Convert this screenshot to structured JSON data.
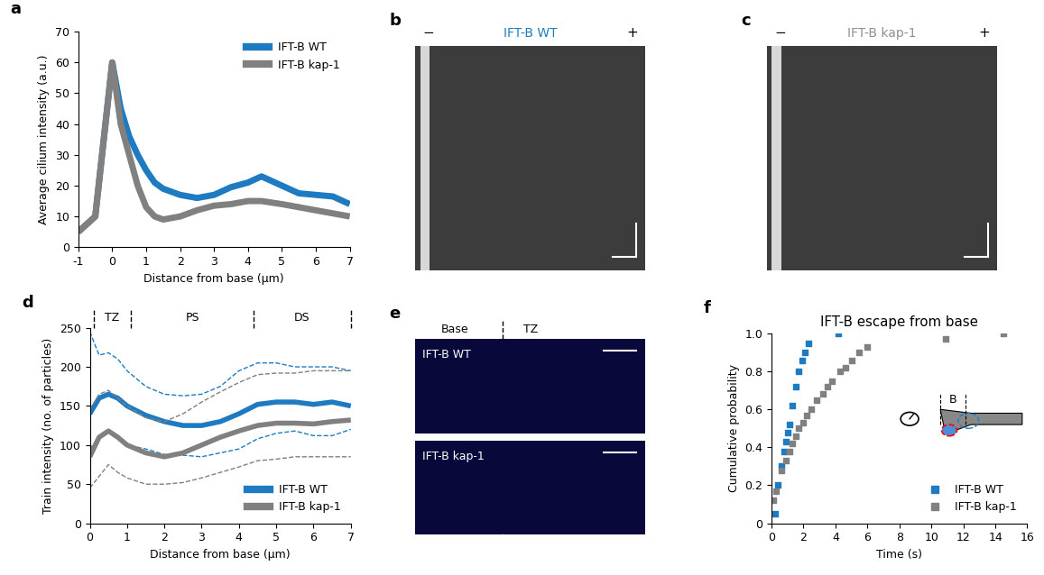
{
  "chart_data": [
    {
      "panel": "a",
      "type": "line",
      "xlabel": "Distance from base (μm)",
      "ylabel": "Average cilium intensity (a.u.)",
      "x": [
        -1,
        -0.5,
        0,
        0.25,
        0.5,
        0.75,
        1,
        1.25,
        1.5,
        2,
        2.5,
        3,
        3.5,
        4,
        4.4,
        5,
        5.5,
        6,
        6.5,
        7
      ],
      "series": [
        {
          "name": "IFT-B WT",
          "color": "#1f7bc1",
          "values": [
            5,
            10,
            60,
            45,
            36,
            30,
            25,
            21,
            19,
            17,
            16,
            17,
            19.5,
            21,
            23,
            20,
            17.5,
            17,
            16.5,
            14
          ]
        },
        {
          "name": "IFT-B kap-1",
          "color": "#808080",
          "values": [
            5,
            10,
            60,
            40,
            30,
            20,
            13,
            10,
            9,
            10,
            12,
            13.5,
            14,
            15,
            15,
            14,
            13,
            12,
            11,
            10
          ]
        }
      ],
      "xlim": [
        -1,
        7
      ],
      "xticks": [
        -1,
        0,
        1,
        2,
        3,
        4,
        5,
        6,
        7
      ],
      "ylim": [
        0,
        70
      ],
      "yticks": [
        0,
        10,
        20,
        30,
        40,
        50,
        60,
        70
      ],
      "legend": "upper right"
    },
    {
      "panel": "b",
      "type": "image",
      "title": "IFT-B WT",
      "color": "#1f7bc1",
      "minus_label": "−",
      "plus_label": "+"
    },
    {
      "panel": "c",
      "type": "image",
      "title": "IFT-B kap-1",
      "color": "#909090",
      "minus_label": "−",
      "plus_label": "+"
    },
    {
      "panel": "d",
      "type": "line",
      "xlabel": "Distance from base (μm)",
      "ylabel": "Train intensity (no. of particles)",
      "x": [
        0,
        0.25,
        0.5,
        0.75,
        1,
        1.5,
        2,
        2.5,
        3,
        3.5,
        4,
        4.5,
        5,
        5.5,
        6,
        6.5,
        7
      ],
      "series": [
        {
          "name": "IFT-B WT",
          "color": "#1f7bc1",
          "values": [
            140,
            160,
            165,
            160,
            150,
            138,
            130,
            125,
            125,
            130,
            140,
            152,
            155,
            155,
            152,
            155,
            150
          ],
          "upper": [
            245,
            215,
            218,
            210,
            195,
            175,
            165,
            163,
            165,
            175,
            195,
            205,
            205,
            200,
            200,
            200,
            195
          ],
          "lower": [
            95,
            110,
            118,
            110,
            100,
            95,
            88,
            87,
            85,
            90,
            95,
            108,
            115,
            118,
            112,
            112,
            120
          ]
        },
        {
          "name": "IFT-B kap-1",
          "color": "#808080",
          "values": [
            85,
            110,
            118,
            110,
            100,
            90,
            85,
            90,
            100,
            110,
            118,
            125,
            128,
            128,
            127,
            130,
            132
          ],
          "upper": [
            145,
            165,
            170,
            160,
            150,
            135,
            130,
            140,
            155,
            168,
            180,
            190,
            192,
            192,
            195,
            195,
            195
          ],
          "lower": [
            45,
            60,
            75,
            65,
            58,
            50,
            50,
            52,
            58,
            65,
            72,
            80,
            82,
            85,
            85,
            85,
            85
          ]
        }
      ],
      "regions": [
        {
          "label": "TZ",
          "start": 0.1,
          "end": 1.1
        },
        {
          "label": "PS",
          "start": 1.1,
          "end": 4.4
        },
        {
          "label": "DS",
          "start": 4.4,
          "end": 7
        }
      ],
      "xlim": [
        0,
        7
      ],
      "xticks": [
        0,
        1,
        2,
        3,
        4,
        5,
        6,
        7
      ],
      "ylim": [
        0,
        250
      ],
      "yticks": [
        0,
        50,
        100,
        150,
        200,
        250
      ],
      "legend": "lower right"
    },
    {
      "panel": "e",
      "type": "image",
      "base_label": "Base",
      "tz_label": "TZ",
      "top_label": "IFT-B WT",
      "bottom_label": "IFT-B kap-1"
    },
    {
      "panel": "f",
      "type": "scatter",
      "title": "IFT-B escape from base",
      "xlabel": "Time (s)",
      "ylabel": "Cumulative probability",
      "inset_label": "B",
      "series": [
        {
          "name": "IFT-B WT",
          "color": "#1f7bc1",
          "marker": "square",
          "x": [
            0.2,
            0.4,
            0.6,
            0.8,
            0.9,
            1.0,
            1.1,
            1.3,
            1.5,
            1.7,
            1.9,
            2.1,
            2.3,
            4.2
          ],
          "values": [
            0.05,
            0.2,
            0.3,
            0.38,
            0.43,
            0.48,
            0.52,
            0.62,
            0.72,
            0.8,
            0.86,
            0.9,
            0.95,
            1.0
          ]
        },
        {
          "name": "IFT-B kap-1",
          "color": "#808080",
          "marker": "square",
          "x": [
            0.1,
            0.3,
            0.6,
            0.9,
            1.1,
            1.3,
            1.5,
            1.7,
            2.0,
            2.2,
            2.5,
            2.8,
            3.2,
            3.5,
            3.8,
            4.3,
            4.6,
            5.0,
            5.5,
            6.0,
            10.9,
            14.5
          ],
          "values": [
            0.12,
            0.17,
            0.28,
            0.33,
            0.38,
            0.42,
            0.46,
            0.5,
            0.53,
            0.57,
            0.6,
            0.65,
            0.68,
            0.72,
            0.75,
            0.8,
            0.82,
            0.86,
            0.9,
            0.93,
            0.97,
            1.0
          ]
        }
      ],
      "xlim": [
        0,
        16
      ],
      "xticks": [
        0,
        2,
        4,
        6,
        8,
        10,
        12,
        14,
        16
      ],
      "ylim": [
        0,
        1.0
      ],
      "yticks": [
        0,
        0.2,
        0.4,
        0.6,
        0.8,
        1.0
      ],
      "legend": "lower right"
    }
  ]
}
